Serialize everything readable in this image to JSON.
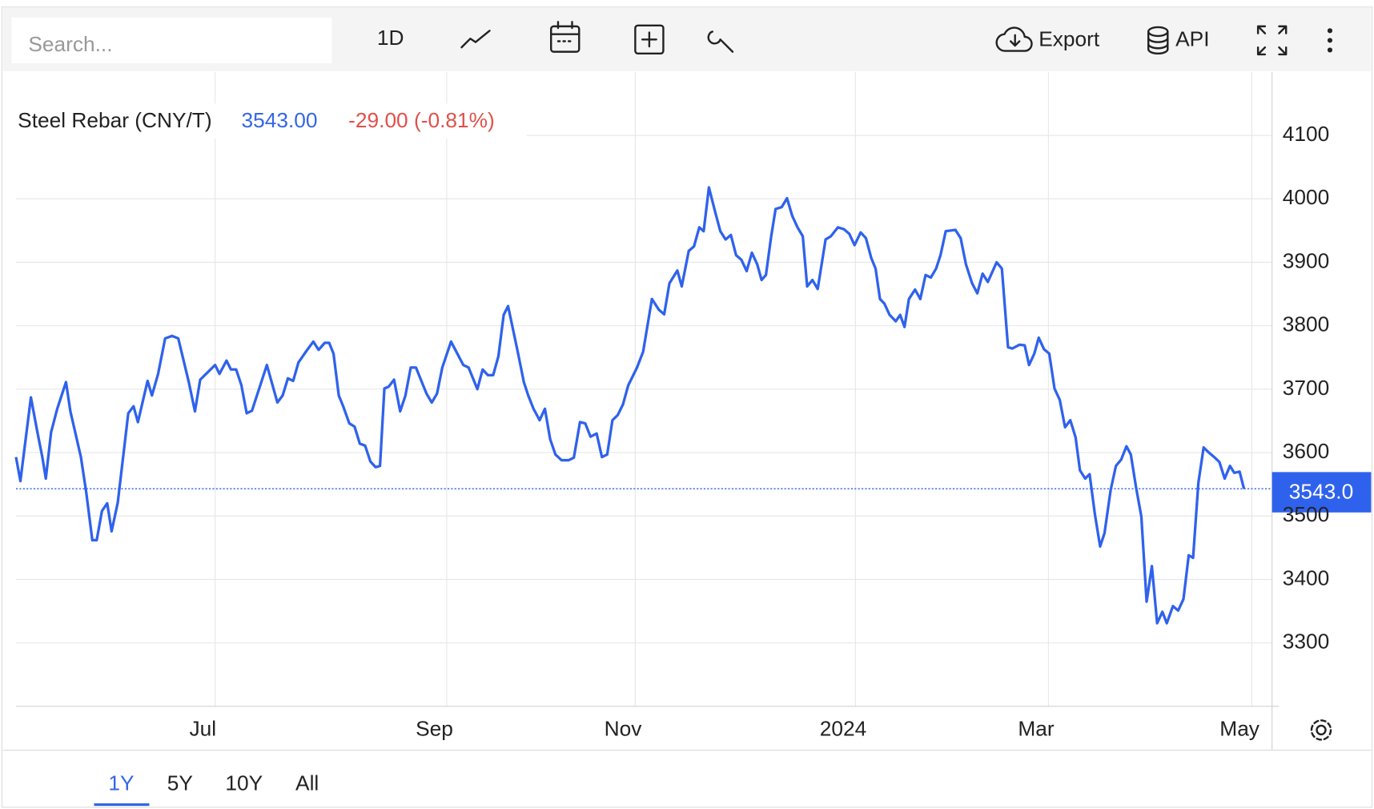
{
  "toolbar": {
    "search_placeholder": "Search...",
    "interval": "1D",
    "export": "Export",
    "api": "API"
  },
  "range_buttons": [
    "1Y",
    "5Y",
    "10Y",
    "All"
  ],
  "chart_data": {
    "type": "line",
    "price": "3543.00",
    "change": "-29.00 (-0.81%)",
    "last_marker": {
      "value": 3543,
      "label": "3543.0"
    },
    "xlim": [
      0,
      1432
    ],
    "ylim": [
      3200,
      4200
    ],
    "xticks": [
      {
        "value": 227,
        "label": "Jul"
      },
      {
        "value": 491,
        "label": "Sep"
      },
      {
        "value": 706,
        "label": "Nov"
      },
      {
        "value": 957,
        "label": "2024"
      },
      {
        "value": 1177,
        "label": "Mar"
      },
      {
        "value": 1409,
        "label": "May"
      }
    ],
    "yticks": [
      3300,
      3400,
      3500,
      3600,
      3700,
      3800,
      3900,
      4000,
      4100
    ],
    "grid": true,
    "x": [
      0,
      5,
      17,
      24,
      30,
      34,
      40,
      47,
      57,
      62,
      74,
      80,
      87,
      92,
      98,
      104,
      109,
      116,
      128,
      134,
      139,
      150,
      155,
      162,
      170,
      178,
      185,
      197,
      204,
      210,
      227,
      232,
      240,
      245,
      251,
      257,
      263,
      269,
      278,
      286,
      298,
      304,
      310,
      316,
      322,
      332,
      339,
      345,
      352,
      357,
      362,
      368,
      373,
      380,
      386,
      392,
      398,
      404,
      410,
      415,
      420,
      425,
      431,
      438,
      444,
      450,
      456,
      468,
      474,
      480,
      486,
      496,
      502,
      510,
      516,
      526,
      532,
      538,
      544,
      550,
      556,
      561,
      572,
      579,
      584,
      590,
      597,
      603,
      609,
      615,
      622,
      630,
      636,
      643,
      649,
      655,
      662,
      668,
      674,
      680,
      686,
      692,
      698,
      708,
      715,
      725,
      733,
      739,
      745,
      754,
      759,
      767,
      773,
      779,
      784,
      790,
      797,
      803,
      809,
      815,
      821,
      827,
      833,
      839,
      845,
      850,
      855,
      861,
      866,
      873,
      879,
      885,
      891,
      897,
      902,
      908,
      914,
      923,
      929,
      937,
      944,
      950,
      956,
      963,
      969,
      975,
      980,
      985,
      990,
      996,
      1003,
      1008,
      1013,
      1018,
      1025,
      1031,
      1037,
      1043,
      1049,
      1054,
      1060,
      1071,
      1077,
      1083,
      1090,
      1096,
      1102,
      1108,
      1118,
      1124,
      1131,
      1136,
      1144,
      1150,
      1155,
      1161,
      1166,
      1172,
      1178,
      1184,
      1190,
      1196,
      1202,
      1208,
      1213,
      1219,
      1224,
      1230,
      1236,
      1241,
      1248,
      1254,
      1260,
      1266,
      1271,
      1277,
      1283,
      1289,
      1295,
      1301,
      1307,
      1312,
      1319,
      1325,
      1331,
      1337,
      1342,
      1348,
      1354,
      1360,
      1366,
      1372,
      1378,
      1384,
      1389,
      1395,
      1400
    ],
    "series": [
      {
        "name": "Steel Rebar (CNY/T)",
        "color": "#2f62ec",
        "values": [
          3593,
          3555,
          3687,
          3635,
          3593,
          3559,
          3632,
          3669,
          3711,
          3665,
          3593,
          3538,
          3462,
          3462,
          3508,
          3520,
          3476,
          3521,
          3662,
          3673,
          3648,
          3713,
          3690,
          3724,
          3780,
          3784,
          3780,
          3711,
          3665,
          3715,
          3738,
          3724,
          3745,
          3731,
          3731,
          3706,
          3662,
          3666,
          3704,
          3738,
          3679,
          3690,
          3717,
          3713,
          3742,
          3762,
          3775,
          3762,
          3773,
          3773,
          3756,
          3690,
          3673,
          3646,
          3641,
          3614,
          3611,
          3586,
          3577,
          3579,
          3701,
          3704,
          3715,
          3665,
          3690,
          3734,
          3734,
          3693,
          3679,
          3693,
          3734,
          3775,
          3759,
          3738,
          3734,
          3700,
          3731,
          3722,
          3722,
          3752,
          3817,
          3831,
          3759,
          3711,
          3690,
          3669,
          3651,
          3669,
          3621,
          3597,
          3588,
          3588,
          3592,
          3648,
          3646,
          3625,
          3630,
          3593,
          3597,
          3651,
          3659,
          3676,
          3706,
          3734,
          3759,
          3842,
          3825,
          3818,
          3867,
          3887,
          3862,
          3918,
          3925,
          3955,
          3949,
          4018,
          3980,
          3949,
          3936,
          3943,
          3911,
          3904,
          3886,
          3915,
          3897,
          3872,
          3880,
          3941,
          3984,
          3987,
          4001,
          3973,
          3955,
          3941,
          3862,
          3872,
          3858,
          3936,
          3941,
          3955,
          3952,
          3945,
          3927,
          3947,
          3938,
          3907,
          3890,
          3842,
          3835,
          3817,
          3807,
          3817,
          3798,
          3842,
          3857,
          3842,
          3880,
          3876,
          3890,
          3911,
          3949,
          3951,
          3938,
          3897,
          3867,
          3851,
          3882,
          3869,
          3900,
          3890,
          3766,
          3764,
          3770,
          3769,
          3738,
          3756,
          3781,
          3763,
          3756,
          3701,
          3683,
          3640,
          3651,
          3624,
          3572,
          3559,
          3566,
          3503,
          3452,
          3473,
          3541,
          3579,
          3589,
          3610,
          3597,
          3545,
          3499,
          3365,
          3421,
          3331,
          3349,
          3331,
          3358,
          3351,
          3369,
          3438,
          3434,
          3552,
          3608,
          3600,
          3593,
          3585,
          3559,
          3579,
          3568,
          3570,
          3543
        ]
      }
    ]
  }
}
